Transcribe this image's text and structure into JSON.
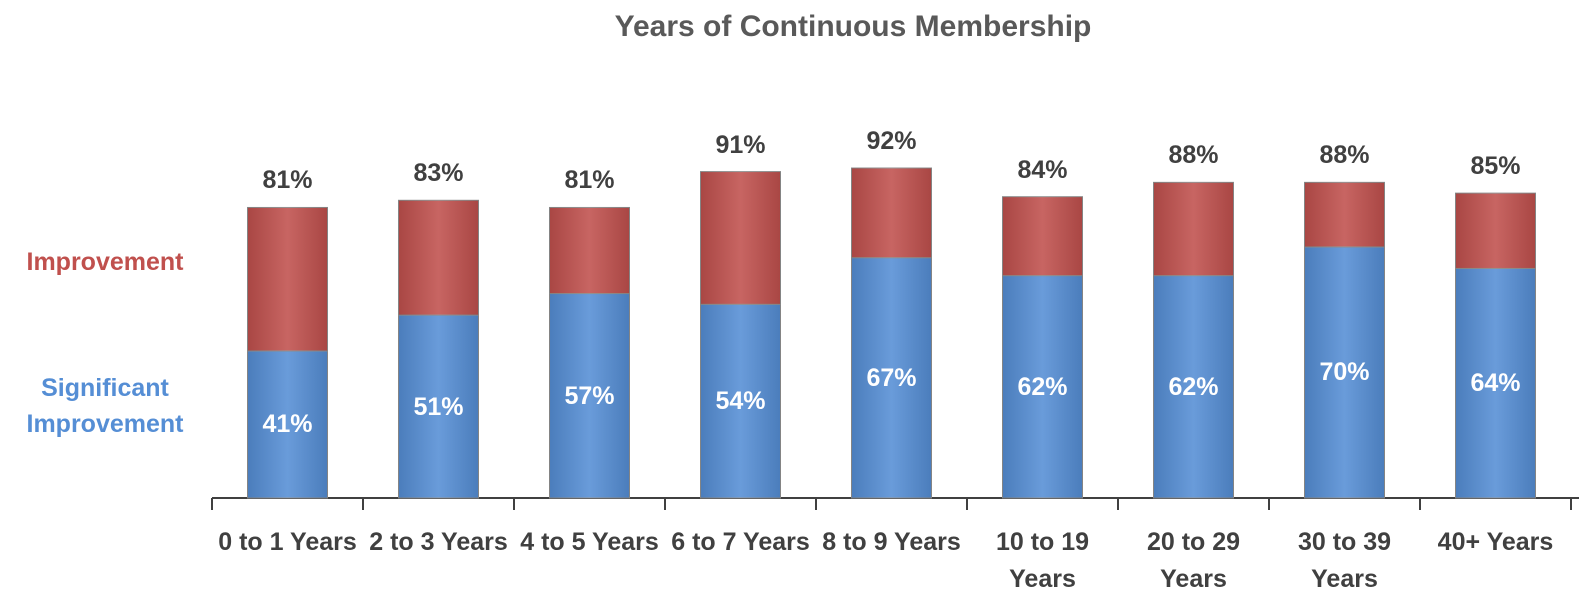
{
  "chart_data": {
    "type": "stacked-bar",
    "title": "Years of Continuous Membership",
    "categories": [
      "0 to 1 Years",
      "2 to 3 Years",
      "4 to 5 Years",
      "6 to 7 Years",
      "8 to 9 Years",
      "10 to 19 Years",
      "20 to 29 Years",
      "30 to 39 Years",
      "40+ Years"
    ],
    "series": [
      {
        "name": "Significant Improvement",
        "color": "#558ed5",
        "values": [
          41,
          51,
          57,
          54,
          67,
          62,
          62,
          70,
          64
        ],
        "value_labels": [
          "41%",
          "51%",
          "57%",
          "54%",
          "67%",
          "62%",
          "62%",
          "70%",
          "64%"
        ]
      },
      {
        "name": "Improvement",
        "color": "#c0504d",
        "values": [
          40,
          32,
          24,
          37,
          25,
          22,
          26,
          18,
          21
        ]
      }
    ],
    "totals": [
      81,
      83,
      81,
      91,
      92,
      84,
      88,
      88,
      85
    ],
    "total_labels": [
      "81%",
      "83%",
      "81%",
      "91%",
      "92%",
      "84%",
      "88%",
      "88%",
      "85%"
    ]
  }
}
